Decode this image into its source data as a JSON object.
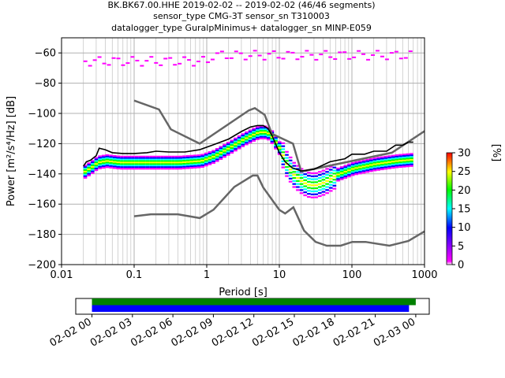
{
  "title": {
    "line1": "BK.BK67.00.HHE   2019-02-02 -- 2019-02-02  (46/46 segments)",
    "line2": "sensor_type CMG-3T sensor_sn T310003",
    "line3": "datalogger_type GuralpMinimus+ datalogger_sn MINP-E059"
  },
  "chart_data": [
    {
      "type": "heatmap",
      "xlabel": "Period [s]",
      "ylabel": "Power [m²/s⁴/Hz] [dB]",
      "xscale": "log",
      "xlim": [
        0.01,
        1000
      ],
      "ylim": [
        -200,
        -50
      ],
      "x_ticks": [
        "0.01",
        "0.1",
        "1",
        "10",
        "100",
        "1000"
      ],
      "y_ticks": [
        "−200",
        "−180",
        "−160",
        "−140",
        "−120",
        "−100",
        "−80",
        "−60"
      ],
      "grid": true,
      "colorbar": {
        "label": "[%]",
        "range": [
          0,
          30
        ],
        "ticks": [
          "0",
          "5",
          "10",
          "15",
          "20",
          "25",
          "30"
        ],
        "colormap": [
          "#ffffff",
          "#ff00ff",
          "#0000ff",
          "#00ffff",
          "#00ff00",
          "#ffff00",
          "#ff0000"
        ]
      },
      "noise_models": {
        "high_noise_model": {
          "color": "#666666",
          "x": [
            0.1,
            0.22,
            0.32,
            0.8,
            3.8,
            4.6,
            6.3,
            7.9,
            15.4,
            20,
            354.8,
            10000
          ],
          "y": [
            -91.5,
            -97.4,
            -110.5,
            -120,
            -98,
            -96.5,
            -101,
            -113.5,
            -120,
            -138.5,
            -126,
            -80.1
          ]
        },
        "low_noise_model": {
          "color": "#666666",
          "x": [
            0.1,
            0.17,
            0.4,
            0.8,
            1.24,
            2.4,
            4.3,
            5,
            6,
            10,
            12,
            15.6,
            21.9,
            31.6,
            45,
            70,
            101,
            154,
            328,
            600,
            1000
          ],
          "y": [
            -168,
            -166.7,
            -166.7,
            -169.2,
            -163.7,
            -148.6,
            -141.1,
            -141.1,
            -149,
            -163.8,
            -166.2,
            -162.1,
            -177.5,
            -185,
            -187.5,
            -187.5,
            -185,
            -185,
            -187.5,
            -184.4,
            -178
          ]
        }
      },
      "mode_line": {
        "color": "#000000",
        "x": [
          0.02,
          0.022,
          0.025,
          0.03,
          0.033,
          0.04,
          0.05,
          0.07,
          0.1,
          0.15,
          0.2,
          0.3,
          0.5,
          0.8,
          1.2,
          2,
          3,
          4,
          5,
          6,
          7,
          8,
          10,
          12,
          15,
          20,
          30,
          50,
          80,
          100,
          150,
          200,
          300,
          400,
          500,
          600,
          700
        ],
        "y": [
          -135,
          -132,
          -131,
          -128,
          -123,
          -124,
          -126,
          -126.5,
          -126.5,
          -126,
          -125,
          -125.5,
          -125.5,
          -124,
          -121,
          -117,
          -112,
          -109,
          -108,
          -108,
          -110,
          -115,
          -126,
          -132,
          -136,
          -138,
          -137,
          -132,
          -130,
          -127,
          -127,
          -125,
          -125,
          -121,
          -121,
          -119,
          -119
        ]
      },
      "density_band": {
        "x": [
          0.02,
          0.025,
          0.03,
          0.04,
          0.06,
          0.1,
          0.2,
          0.4,
          0.8,
          1.2,
          2,
          3,
          4,
          5,
          6,
          7,
          8,
          10,
          12,
          15,
          20,
          25,
          30,
          40,
          60,
          100,
          200,
          400,
          700
        ],
        "y": [
          -138,
          -135,
          -132,
          -131,
          -132,
          -132,
          -132,
          -132,
          -131,
          -128,
          -122,
          -117,
          -114,
          -112,
          -112,
          -113,
          -117,
          -124,
          -133,
          -140,
          -145,
          -147,
          -147,
          -145,
          -140,
          -136,
          -133,
          -131,
          -130
        ]
      },
      "outliers_near_-60": {
        "period_range": [
          0.02,
          700
        ],
        "level_db": [
          -78,
          -60
        ]
      }
    },
    {
      "type": "table",
      "description_label": "",
      "x_ticks": [
        "02-02 00",
        "02-02 03",
        "02-02 06",
        "02-02 09",
        "02-02 12",
        "02-02 15",
        "02-02 18",
        "02-02 21",
        "02-03 00"
      ],
      "time_range_hours": [
        -1.2,
        25.0
      ],
      "bars": [
        {
          "color": "#008000",
          "start_hour": 0,
          "end_hour": 24
        },
        {
          "color": "#0000ff",
          "start_hour": 0,
          "end_hour": 23.5
        }
      ]
    }
  ]
}
